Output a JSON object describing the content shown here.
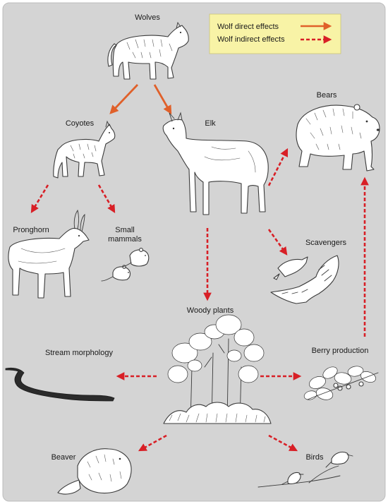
{
  "diagram": {
    "nodes": {
      "wolves": "Wolves",
      "coyotes": "Coyotes",
      "elk": "Elk",
      "bears": "Bears",
      "pronghorn": "Pronghorn",
      "small_mammals_line1": "Small",
      "small_mammals_line2": "mammals",
      "scavengers": "Scavengers",
      "woody_plants": "Woody plants",
      "stream_morphology": "Stream morphology",
      "berry_production": "Berry production",
      "beaver": "Beaver",
      "birds": "Birds"
    },
    "legend": {
      "direct": "Wolf direct effects",
      "indirect": "Wolf indirect effects"
    },
    "colors": {
      "background": "#d4d4d4",
      "legend_fill": "#f8f3a6",
      "direct_arrow": "#e0602a",
      "indirect_arrow": "#d81f26"
    },
    "edges": [
      {
        "from": "Wolves",
        "to": "Coyotes",
        "type": "direct"
      },
      {
        "from": "Wolves",
        "to": "Elk",
        "type": "direct"
      },
      {
        "from": "Coyotes",
        "to": "Pronghorn",
        "type": "indirect"
      },
      {
        "from": "Coyotes",
        "to": "Small mammals",
        "type": "indirect"
      },
      {
        "from": "Elk",
        "to": "Bears",
        "type": "indirect"
      },
      {
        "from": "Elk",
        "to": "Scavengers",
        "type": "indirect"
      },
      {
        "from": "Elk",
        "to": "Woody plants",
        "type": "indirect"
      },
      {
        "from": "Woody plants",
        "to": "Stream morphology",
        "type": "indirect"
      },
      {
        "from": "Woody plants",
        "to": "Berry production",
        "type": "indirect"
      },
      {
        "from": "Woody plants",
        "to": "Beaver",
        "type": "indirect"
      },
      {
        "from": "Woody plants",
        "to": "Birds",
        "type": "indirect"
      },
      {
        "from": "Berry production",
        "to": "Bears",
        "type": "indirect"
      }
    ]
  }
}
